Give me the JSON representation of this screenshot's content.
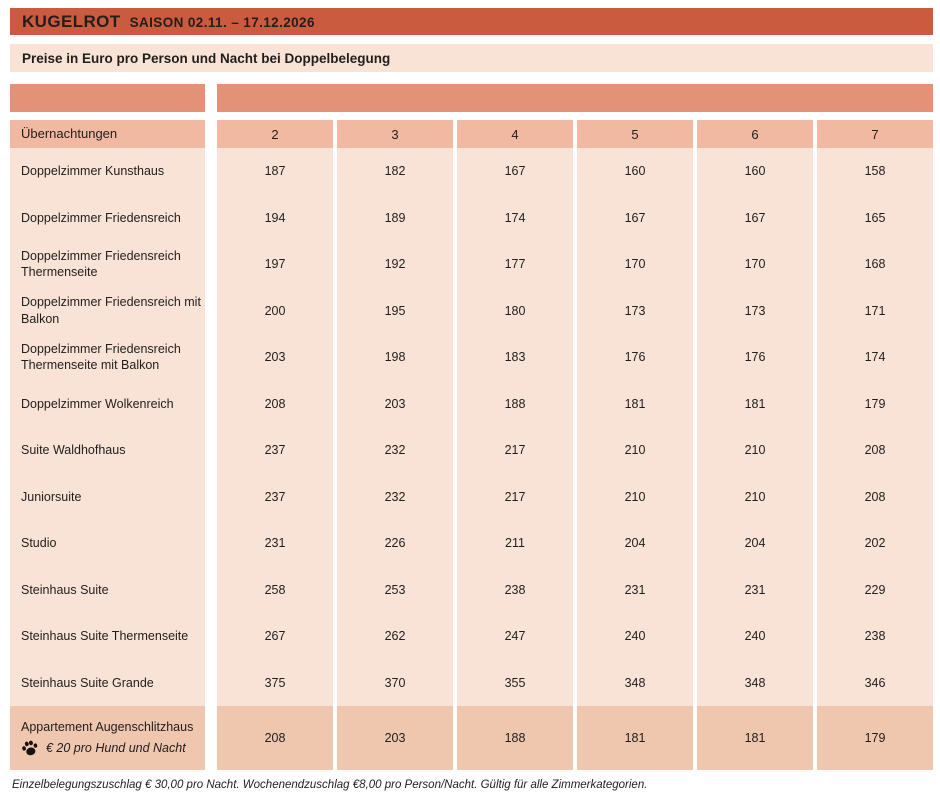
{
  "header": {
    "title": "KUGELROT",
    "season": "SAISON 02.11. – 17.12.2026",
    "subtitle": "Preise in Euro pro Person und Nacht bei Doppelbelegung"
  },
  "colors": {
    "title_band": "#cb5b3e",
    "band": "#e39177",
    "header_row": "#f1b9a1",
    "data_row": "#f8e3d6",
    "highlight_row": "#efc6ae",
    "text": "#211e1c"
  },
  "table": {
    "corner_label": "Übernachtungen",
    "columns": [
      "2",
      "3",
      "4",
      "5",
      "6",
      "7"
    ],
    "rows": [
      {
        "label": "Doppelzimmer Kunsthaus",
        "values": [
          187,
          182,
          167,
          160,
          160,
          158
        ]
      },
      {
        "label": "Doppelzimmer Friedensreich",
        "values": [
          194,
          189,
          174,
          167,
          167,
          165
        ]
      },
      {
        "label": "Doppelzimmer Friedensreich Thermenseite",
        "values": [
          197,
          192,
          177,
          170,
          170,
          168
        ]
      },
      {
        "label": "Doppelzimmer Friedensreich mit Balkon",
        "values": [
          200,
          195,
          180,
          173,
          173,
          171
        ]
      },
      {
        "label": "Doppelzimmer Friedensreich Thermenseite mit Balkon",
        "values": [
          203,
          198,
          183,
          176,
          176,
          174
        ]
      },
      {
        "label": "Doppelzimmer Wolkenreich",
        "values": [
          208,
          203,
          188,
          181,
          181,
          179
        ]
      },
      {
        "label": "Suite Waldhofhaus",
        "values": [
          237,
          232,
          217,
          210,
          210,
          208
        ]
      },
      {
        "label": "Juniorsuite",
        "values": [
          237,
          232,
          217,
          210,
          210,
          208
        ]
      },
      {
        "label": "Studio",
        "values": [
          231,
          226,
          211,
          204,
          204,
          202
        ]
      },
      {
        "label": "Steinhaus Suite",
        "values": [
          258,
          253,
          238,
          231,
          231,
          229
        ]
      },
      {
        "label": "Steinhaus Suite Thermenseite",
        "values": [
          267,
          262,
          247,
          240,
          240,
          238
        ]
      },
      {
        "label": "Steinhaus Suite Grande",
        "values": [
          375,
          370,
          355,
          348,
          348,
          346
        ]
      },
      {
        "label": "Appartement Augenschlitzhaus",
        "note": "€ 20 pro Hund und Nacht",
        "highlight": true,
        "values": [
          208,
          203,
          188,
          181,
          181,
          179
        ]
      }
    ]
  },
  "footer": "Einzelbelegungszuschlag € 30,00 pro Nacht. Wochenendzuschlag €8,00 pro Person/Nacht. Gültig für alle Zimmerkategorien."
}
